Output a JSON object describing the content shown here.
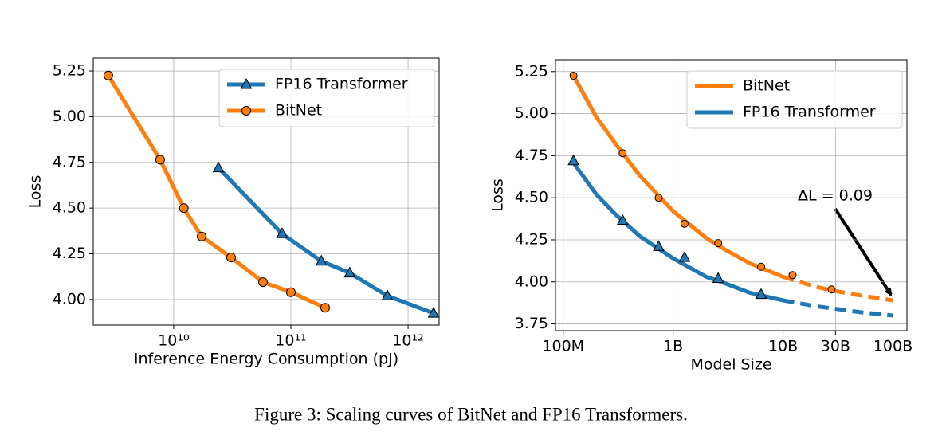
{
  "chart_data": [
    {
      "type": "line",
      "xlabel": "Inference Energy Consumption (pJ)",
      "ylabel": "Loss",
      "xscale": "log",
      "grid": true,
      "legend": "upper right",
      "xlim": [
        2060000000,
        1840000000000
      ],
      "xticks": [
        {
          "value": 10000000000,
          "label": "10¹⁰"
        },
        {
          "value": 100000000000,
          "label": "10¹¹"
        },
        {
          "value": 1000000000000,
          "label": "10¹²"
        }
      ],
      "ylim": [
        3.86,
        5.32
      ],
      "yticks": [
        {
          "value": 4,
          "label": "4.00"
        },
        4.25,
        {
          "value": 4.5,
          "label": "4.50"
        },
        4.75,
        {
          "value": 5,
          "label": "5.00"
        },
        5.25
      ],
      "series": [
        {
          "name": "FP16 Transformer",
          "color": "#1f77b4",
          "marker": "triangle",
          "x": [
            24100000000,
            84000000000,
            182000000000,
            318000000000,
            665000000000,
            1650000000000
          ],
          "values": [
            4.72,
            4.36,
            4.21,
            4.145,
            4.02,
            3.925
          ]
        },
        {
          "name": "BitNet",
          "color": "#ff7f0e",
          "marker": "circle",
          "x": [
            2770000000,
            7660000000,
            12200000000,
            17300000000,
            30900000000,
            57800000000,
            100000000000,
            196000000000
          ],
          "values": [
            5.225,
            4.765,
            4.5,
            4.345,
            4.23,
            4.095,
            4.04,
            3.955
          ]
        }
      ]
    },
    {
      "type": "fit",
      "xlabel": "Model Size",
      "ylabel": "Loss",
      "xscale": "log",
      "grid": true,
      "legend": "upper right",
      "annotation": "ΔL = 0.09",
      "xlim": [
        85000000,
        134000000000
      ],
      "xticks": [
        {
          "value": 100000000,
          "label": "100M"
        },
        {
          "value": 1000000000,
          "label": "1B"
        },
        {
          "value": 10000000000,
          "label": "10B"
        },
        {
          "value": 30000000000,
          "label": "30B"
        },
        {
          "value": 100000000000,
          "label": "100B"
        }
      ],
      "ylim": [
        3.71,
        5.32
      ],
      "yticks": [
        3.75,
        {
          "value": 4,
          "label": "4.00"
        },
        4.25,
        {
          "value": 4.5,
          "label": "4.50"
        },
        4.75,
        {
          "value": 5,
          "label": "5.00"
        },
        5.25
      ],
      "fit_dashed_after": 10000000000,
      "series": [
        {
          "name": "BitNet",
          "color": "#ff7f0e",
          "marker": "circle",
          "x": [
            124000000,
            347000000,
            738000000,
            1270000000,
            2570000000,
            6320000000,
            12200000000,
            27600000000
          ],
          "values": [
            5.225,
            4.765,
            4.5,
            4.345,
            4.23,
            4.09,
            4.04,
            3.955
          ],
          "fit_x": [
            124000000,
            200000000,
            300000000,
            500000000,
            1000000000,
            2000000000,
            3000000000,
            5000000000,
            10000000000,
            20000000000,
            30000000000,
            50000000000,
            100000000000
          ],
          "fit_values": [
            5.225,
            4.98,
            4.82,
            4.63,
            4.42,
            4.26,
            4.19,
            4.11,
            4.03,
            3.97,
            3.945,
            3.92,
            3.89
          ]
        },
        {
          "name": "FP16 Transformer",
          "color": "#1f77b4",
          "marker": "triangle",
          "x": [
            124000000,
            347000000,
            738000000,
            1270000000,
            2570000000,
            6320000000
          ],
          "values": [
            4.72,
            4.365,
            4.21,
            4.145,
            4.02,
            3.925
          ],
          "fit_x": [
            120000000,
            200000000,
            300000000,
            500000000,
            1000000000,
            2000000000,
            3000000000,
            5000000000,
            10000000000,
            20000000000,
            30000000000,
            50000000000,
            100000000000
          ],
          "fit_values": [
            4.72,
            4.52,
            4.4,
            4.27,
            4.14,
            4.03,
            3.99,
            3.935,
            3.89,
            3.855,
            3.84,
            3.82,
            3.8
          ]
        }
      ]
    }
  ],
  "caption": "Figure 3: Scaling curves of BitNet and FP16 Transformers."
}
